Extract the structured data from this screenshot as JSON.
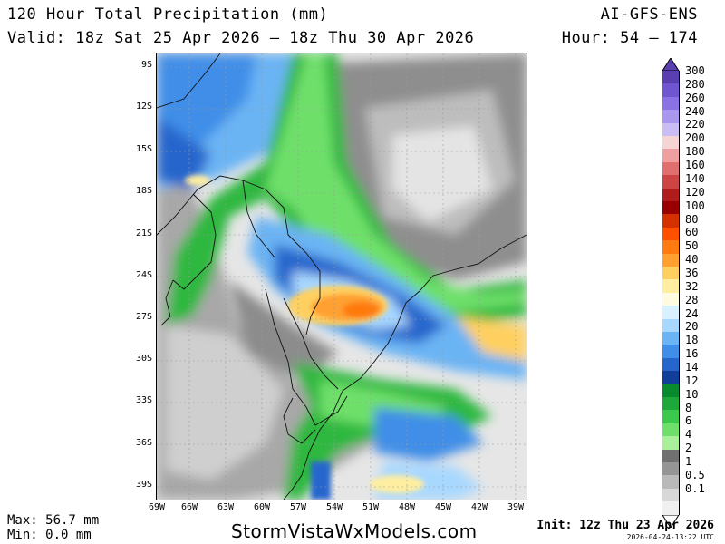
{
  "header": {
    "title": "120 Hour Total Precipitation (mm)",
    "valid": "Valid: 18z Sat 25 Apr 2026 — 18z Thu 30 Apr 2026",
    "model": "AI-GFS-ENS",
    "hours": "Hour: 54 — 174"
  },
  "map": {
    "lat_labels": [
      "9S",
      "12S",
      "15S",
      "18S",
      "21S",
      "24S",
      "27S",
      "30S",
      "33S",
      "36S",
      "39S"
    ],
    "lon_labels": [
      "69W",
      "66W",
      "63W",
      "60W",
      "57W",
      "54W",
      "51W",
      "48W",
      "45W",
      "42W",
      "39W"
    ]
  },
  "colorbar": {
    "labels": [
      "300",
      "280",
      "260",
      "240",
      "220",
      "200",
      "180",
      "160",
      "140",
      "120",
      "100",
      "80",
      "60",
      "50",
      "40",
      "36",
      "32",
      "28",
      "24",
      "20",
      "18",
      "16",
      "14",
      "12",
      "10",
      "8",
      "6",
      "4",
      "2",
      "1",
      "0.5",
      "0.1"
    ],
    "colors": [
      "#5a3fb0",
      "#6f55d0",
      "#8a72e4",
      "#a996ee",
      "#c9bdf4",
      "#f5d4d4",
      "#ef9f9f",
      "#e07070",
      "#cc4444",
      "#b01c1c",
      "#990000",
      "#d43000",
      "#ff5000",
      "#ff7a10",
      "#ffa030",
      "#ffd060",
      "#ffeea0",
      "#fffbe0",
      "#d8f0ff",
      "#a8d8ff",
      "#6ab4f4",
      "#3f8ee8",
      "#2566cc",
      "#103e98",
      "#0a8a2e",
      "#1fa83a",
      "#3cc84a",
      "#6ee06a",
      "#a8f09a",
      "#707070",
      "#959595",
      "#b9b9b9",
      "#d8d8d8",
      "#f0f0f0"
    ]
  },
  "footer": {
    "max": "Max: 56.7 mm",
    "min": "Min: 0.0 mm",
    "site": "StormVistaWxModels.com",
    "init": "Init: 12z Thu 23 Apr 2026",
    "stamp": "2026-04-24-13:22 UTC"
  }
}
